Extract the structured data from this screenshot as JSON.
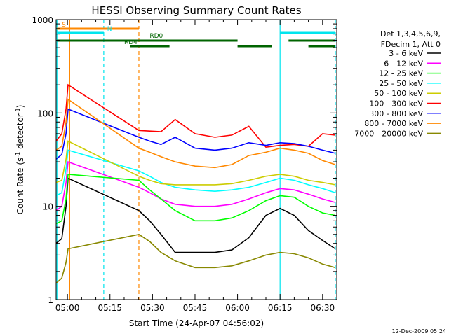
{
  "chart_data": {
    "type": "line",
    "title": "HESSI Observing Summary Count Rates",
    "xlabel": "Start Time (24-Apr-07 04:56:02)",
    "ylabel_main": "Count Rate (s",
    "ylabel_sup1": "-1",
    "ylabel_mid": " detector",
    "ylabel_sup2": "-1",
    "ylabel_end": ")",
    "ylim": [
      1,
      1000
    ],
    "yscale": "log",
    "xlim_minutes": [
      56,
      155
    ],
    "x_ticks": [
      {
        "m": 60,
        "label": "05:00"
      },
      {
        "m": 75,
        "label": "05:15"
      },
      {
        "m": 90,
        "label": "05:30"
      },
      {
        "m": 105,
        "label": "05:45"
      },
      {
        "m": 120,
        "label": "06:00"
      },
      {
        "m": 135,
        "label": "06:15"
      },
      {
        "m": 150,
        "label": "06:30"
      }
    ],
    "y_ticks": [
      {
        "v": 1,
        "label": "1"
      },
      {
        "v": 10,
        "label": "10"
      },
      {
        "v": 100,
        "label": "100"
      },
      {
        "v": 1000,
        "label": "1000"
      }
    ],
    "legend_header": [
      "Det 1,3,4,5,6,9,",
      "FDecim 1, Att 0"
    ],
    "legend_position": "right",
    "series": [
      {
        "name": "3 - 6 keV",
        "color": "#000000",
        "x": [
          56,
          58,
          59.5,
          60.2,
          85.2,
          89,
          93,
          98,
          105,
          112,
          118,
          124,
          130,
          135,
          140,
          145,
          150,
          154.5
        ],
        "values": [
          4,
          4.5,
          10,
          20,
          9,
          7,
          5,
          3.2,
          3.2,
          3.2,
          3.4,
          4.6,
          8,
          9.5,
          8,
          5.5,
          4.3,
          3.5
        ]
      },
      {
        "name": "6 - 12 keV",
        "color": "#ff00ff",
        "x": [
          56,
          58,
          59.5,
          60.2,
          85.2,
          89,
          93,
          98,
          105,
          112,
          118,
          124,
          130,
          135,
          140,
          145,
          150,
          154.5
        ],
        "values": [
          9,
          10,
          18,
          30,
          16,
          14,
          12,
          10.5,
          10,
          10,
          10.5,
          12,
          14,
          15.5,
          15,
          13.5,
          12,
          11
        ]
      },
      {
        "name": "12 - 25 keV",
        "color": "#00ff00",
        "x": [
          56,
          58,
          59.5,
          60.2,
          85.2,
          89,
          93,
          98,
          105,
          112,
          118,
          124,
          130,
          135,
          140,
          145,
          150,
          154.5
        ],
        "values": [
          6.5,
          7,
          12,
          22,
          19,
          15,
          12,
          9,
          7,
          7,
          7.5,
          9,
          11.5,
          13,
          12.5,
          10,
          8.5,
          8
        ]
      },
      {
        "name": "25 - 50 keV",
        "color": "#00ffff",
        "x": [
          56,
          58,
          59.5,
          60.2,
          85.2,
          89,
          93,
          98,
          105,
          112,
          118,
          124,
          130,
          135,
          140,
          145,
          150,
          154.5
        ],
        "values": [
          13,
          14,
          25,
          40,
          24,
          21,
          18,
          16,
          15,
          14.5,
          15,
          16,
          18,
          20,
          19,
          17,
          15.5,
          14
        ]
      },
      {
        "name": "50 - 100 keV",
        "color": "#cccc00",
        "x": [
          56,
          58,
          59.5,
          60.2,
          85.2,
          89,
          93,
          98,
          105,
          112,
          118,
          124,
          130,
          135,
          140,
          145,
          150,
          154.5
        ],
        "values": [
          18,
          19,
          32,
          50,
          21,
          19,
          17.5,
          17,
          17,
          17,
          17.5,
          19,
          21,
          22,
          21,
          19,
          18,
          17
        ]
      },
      {
        "name": "100 - 300 keV",
        "color": "#ff0000",
        "x": [
          56,
          58,
          59.5,
          60.2,
          85.2,
          89,
          93,
          98,
          105,
          112,
          118,
          124,
          130,
          135,
          140,
          145,
          150,
          154.5
        ],
        "values": [
          50,
          60,
          110,
          200,
          65,
          64,
          63,
          85,
          60,
          55,
          58,
          72,
          43,
          45,
          46,
          44,
          60,
          58
        ]
      },
      {
        "name": "300 - 800 keV",
        "color": "#0000ff",
        "x": [
          56,
          58,
          59.5,
          60.2,
          85.2,
          89,
          93,
          98,
          105,
          112,
          118,
          124,
          130,
          135,
          140,
          145,
          150,
          154.5
        ],
        "values": [
          32,
          36,
          60,
          110,
          55,
          50,
          46,
          55,
          42,
          40,
          42,
          48,
          45,
          48,
          47,
          44,
          40,
          37
        ]
      },
      {
        "name": "800 - 7000 keV",
        "color": "#ff8800",
        "x": [
          56,
          58,
          59.5,
          60.2,
          85.2,
          89,
          93,
          98,
          105,
          112,
          118,
          124,
          130,
          135,
          140,
          145,
          150,
          154.5
        ],
        "values": [
          40,
          44,
          80,
          140,
          42,
          38,
          34,
          30,
          27,
          26,
          28,
          35,
          38,
          42,
          40,
          37,
          31,
          28
        ]
      },
      {
        "name": "7000 - 20000 keV",
        "color": "#888800",
        "x": [
          56,
          58,
          59.5,
          60.2,
          85.2,
          89,
          93,
          98,
          105,
          112,
          118,
          124,
          130,
          135,
          140,
          145,
          150,
          154.5
        ],
        "values": [
          1.5,
          1.7,
          2.5,
          3.5,
          5,
          4.2,
          3.2,
          2.6,
          2.2,
          2.2,
          2.3,
          2.6,
          3,
          3.2,
          3.1,
          2.8,
          2.4,
          2.2
        ]
      }
    ],
    "vlines": [
      {
        "m": 56.3,
        "color": "#00e5ee",
        "dash": false
      },
      {
        "m": 60.8,
        "color": "#ff8800",
        "dash": false
      },
      {
        "m": 72.8,
        "color": "#00e5ee",
        "dash": true
      },
      {
        "m": 85.2,
        "color": "#ff8800",
        "dash": true
      },
      {
        "m": 135,
        "color": "#00e5ee",
        "dash": false
      },
      {
        "m": 154.5,
        "color": "#00e5ee",
        "dash": true
      }
    ],
    "flag_bars": [
      {
        "label": "S",
        "label_m": 58,
        "y": 41,
        "color": "#ff8800",
        "segments": [
          [
            56.3,
            85.2
          ]
        ],
        "label_dy": 0
      },
      {
        "label": "N",
        "label_m": 74,
        "y": 47,
        "color": "#00e5ee",
        "segments": [
          [
            56.3,
            72.8
          ],
          [
            135,
            154.5
          ]
        ],
        "label_dy": 0
      },
      {
        "label": "RD0",
        "label_m": 89,
        "y": 58,
        "color": "#006400",
        "segments": [
          [
            56.3,
            120
          ],
          [
            138,
            154.5
          ]
        ],
        "label_dy": -1
      },
      {
        "label": "RD4",
        "label_m": 80,
        "y": 66,
        "color": "#006400",
        "segments": [
          [
            82,
            96
          ],
          [
            120,
            132
          ],
          [
            145,
            154.5
          ]
        ],
        "label_dy": 0
      }
    ]
  },
  "footer_date": "12-Dec-2009 05:24"
}
